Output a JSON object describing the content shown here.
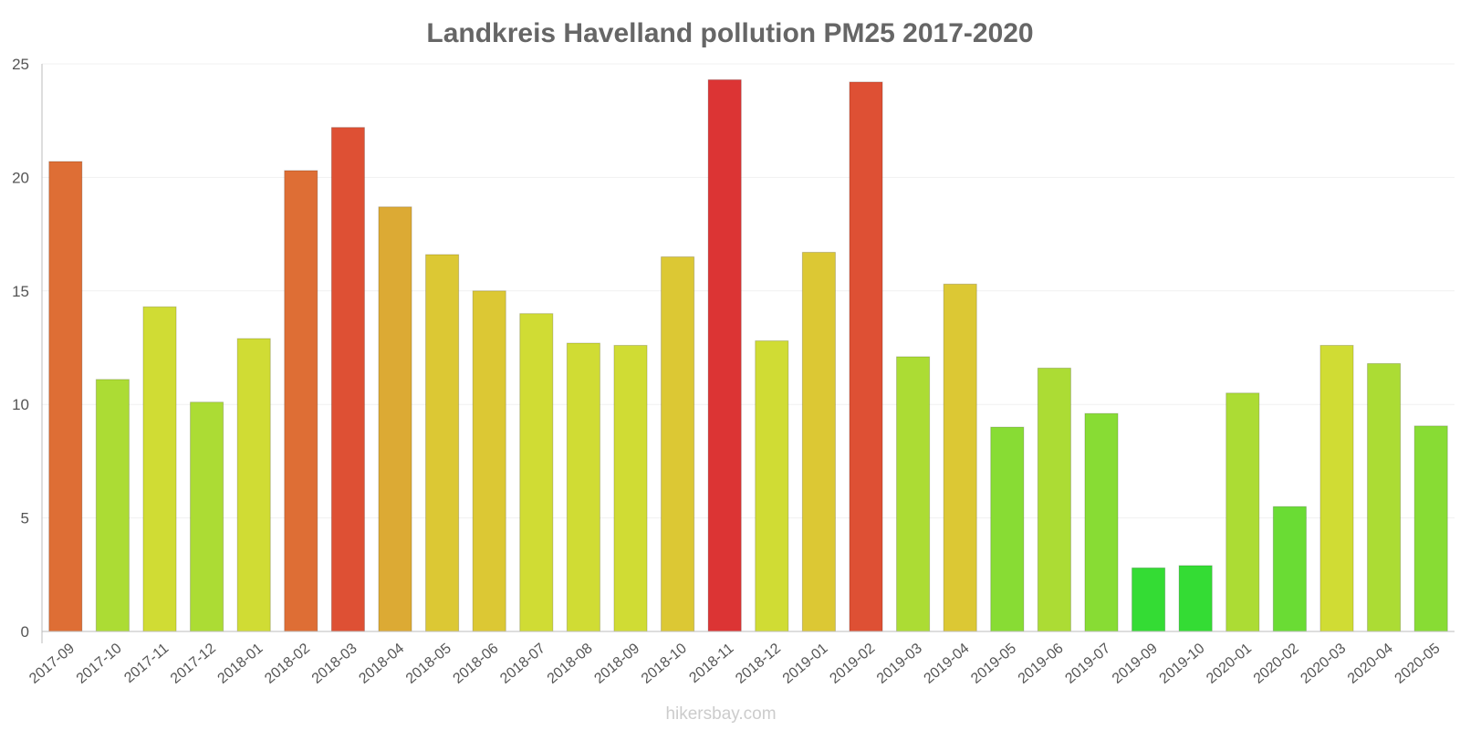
{
  "chart_data": {
    "type": "bar",
    "title": "Landkreis Havelland pollution PM25 2017-2020",
    "xlabel": "",
    "ylabel": "",
    "ylim": [
      0,
      25
    ],
    "yticks": [
      0,
      5,
      10,
      15,
      20,
      25
    ],
    "categories": [
      "2017-09",
      "2017-10",
      "2017-11",
      "2017-12",
      "2018-01",
      "2018-02",
      "2018-03",
      "2018-04",
      "2018-05",
      "2018-06",
      "2018-07",
      "2018-08",
      "2018-09",
      "2018-10",
      "2018-11",
      "2018-12",
      "2019-01",
      "2019-02",
      "2019-03",
      "2019-04",
      "2019-05",
      "2019-06",
      "2019-07",
      "2019-09",
      "2019-10",
      "2020-01",
      "2020-02",
      "2020-03",
      "2020-04",
      "2020-05"
    ],
    "values": [
      20.7,
      11.1,
      14.3,
      10.1,
      12.9,
      20.3,
      22.2,
      18.7,
      16.6,
      15.0,
      14.0,
      12.7,
      12.6,
      16.5,
      24.3,
      12.8,
      16.7,
      24.2,
      12.1,
      15.3,
      9.0,
      11.6,
      9.6,
      2.8,
      2.9,
      10.5,
      5.5,
      12.6,
      11.8,
      9.05
    ],
    "colors": [
      "#de6e35",
      "#acdc34",
      "#d0dc34",
      "#acdc34",
      "#d0dc34",
      "#de6e35",
      "#de5034",
      "#dcaa34",
      "#dcc834",
      "#dcc834",
      "#d0dc34",
      "#d0dc34",
      "#d0dc34",
      "#dcc834",
      "#dc3434",
      "#d0dc34",
      "#dcc834",
      "#de5034",
      "#acdc34",
      "#dcc834",
      "#88dc34",
      "#acdc34",
      "#88dc34",
      "#34dc34",
      "#34dc34",
      "#acdc34",
      "#6adc34",
      "#d0dc34",
      "#acdc34",
      "#88dc34"
    ],
    "grid": true,
    "legend": "none"
  },
  "watermark": "hikersbay.com"
}
